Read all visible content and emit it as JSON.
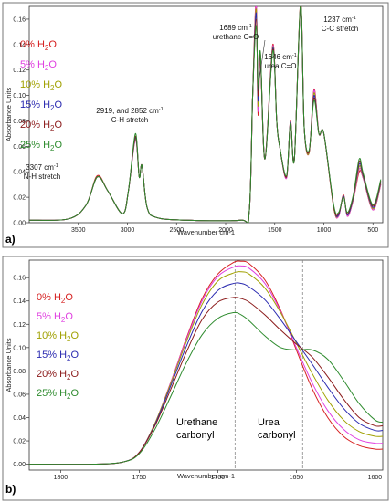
{
  "chart_data": [
    {
      "type": "line",
      "panel_label": "a)",
      "xlabel": "Wavenumber cm-1",
      "ylabel": "Absorbance Units",
      "xlim": [
        4000,
        400
      ],
      "ylim": [
        0,
        0.17
      ],
      "xticks": [
        "3500",
        "3000",
        "2500",
        "2000",
        "1500",
        "1000",
        "500"
      ],
      "yticks": [
        "0.00",
        "0.02",
        "0.04",
        "0.06",
        "0.08",
        "0.10",
        "0.12",
        "0.14",
        "0.16"
      ],
      "legend_position": "top-left",
      "legend": [
        {
          "name": "0% H",
          "sub": "2",
          "tail": "O",
          "color": "#d62020"
        },
        {
          "name": "5% H",
          "sub": "2",
          "tail": "O",
          "color": "#e040e0"
        },
        {
          "name": "10% H",
          "sub": "2",
          "tail": "O",
          "color": "#a0a000"
        },
        {
          "name": "15% H",
          "sub": "2",
          "tail": "O",
          "color": "#2a2ab0"
        },
        {
          "name": "20% H",
          "sub": "2",
          "tail": "O",
          "color": "#8b1a1a"
        },
        {
          "name": "25% H",
          "sub": "2",
          "tail": "O",
          "color": "#2e8b2e"
        }
      ],
      "annotations": [
        {
          "lines": [
            "3307 cm",
            "N-H stretch"
          ],
          "sup": "-1"
        },
        {
          "lines": [
            "2919, and 2852 cm",
            "C-H stretch"
          ],
          "sup": "-1"
        },
        {
          "lines": [
            "1689 cm",
            "urethane C=O"
          ],
          "sup": "-1"
        },
        {
          "lines": [
            "1646 cm",
            "urea C=O"
          ],
          "sup": "-1"
        },
        {
          "lines": [
            "1237 cm",
            "C-C stretch"
          ],
          "sup": "-1"
        }
      ],
      "peaks_series": [
        {
          "name": "0% H2O",
          "color": "#d62020",
          "x": [
            4000,
            3600,
            3420,
            3307,
            3200,
            3050,
            2990,
            2919,
            2880,
            2852,
            2800,
            2700,
            2400,
            1850,
            1760,
            1725,
            1689,
            1670,
            1646,
            1600,
            1520,
            1480,
            1450,
            1380,
            1340,
            1300,
            1237,
            1200,
            1150,
            1100,
            1050,
            1000,
            900,
            850,
            800,
            760,
            700,
            640,
            600,
            500,
            420
          ],
          "y": [
            0.002,
            0.003,
            0.014,
            0.037,
            0.025,
            0.007,
            0.025,
            0.066,
            0.036,
            0.045,
            0.012,
            0.004,
            0.002,
            0.002,
            0.008,
            0.1,
            0.174,
            0.085,
            0.128,
            0.05,
            0.14,
            0.08,
            0.06,
            0.035,
            0.08,
            0.05,
            0.173,
            0.075,
            0.055,
            0.105,
            0.07,
            0.07,
            0.012,
            0.005,
            0.022,
            0.005,
            0.018,
            0.04,
            0.035,
            0.01,
            0.03
          ]
        },
        {
          "name": "5% H2O",
          "color": "#e040e0",
          "x": [
            4000,
            3600,
            3420,
            3307,
            3200,
            3050,
            2990,
            2919,
            2880,
            2852,
            2800,
            2700,
            2400,
            1850,
            1760,
            1725,
            1689,
            1670,
            1646,
            1600,
            1520,
            1480,
            1450,
            1380,
            1340,
            1300,
            1237,
            1200,
            1150,
            1100,
            1050,
            1000,
            900,
            850,
            800,
            760,
            700,
            640,
            600,
            500,
            420
          ],
          "y": [
            0.002,
            0.003,
            0.014,
            0.036,
            0.025,
            0.007,
            0.025,
            0.065,
            0.036,
            0.045,
            0.012,
            0.004,
            0.002,
            0.002,
            0.008,
            0.1,
            0.171,
            0.088,
            0.129,
            0.05,
            0.139,
            0.08,
            0.06,
            0.035,
            0.079,
            0.05,
            0.17,
            0.075,
            0.055,
            0.104,
            0.07,
            0.07,
            0.012,
            0.005,
            0.021,
            0.005,
            0.018,
            0.042,
            0.035,
            0.01,
            0.03
          ]
        },
        {
          "name": "10% H2O",
          "color": "#a0a000",
          "x": [
            4000,
            3600,
            3420,
            3307,
            3200,
            3050,
            2990,
            2919,
            2880,
            2852,
            2800,
            2700,
            2400,
            1850,
            1760,
            1725,
            1689,
            1670,
            1646,
            1600,
            1520,
            1480,
            1450,
            1380,
            1340,
            1300,
            1237,
            1200,
            1150,
            1100,
            1050,
            1000,
            900,
            850,
            800,
            760,
            700,
            640,
            600,
            500,
            420
          ],
          "y": [
            0.002,
            0.003,
            0.014,
            0.036,
            0.025,
            0.007,
            0.025,
            0.066,
            0.036,
            0.045,
            0.012,
            0.004,
            0.002,
            0.002,
            0.008,
            0.1,
            0.168,
            0.092,
            0.131,
            0.05,
            0.138,
            0.08,
            0.06,
            0.036,
            0.079,
            0.05,
            0.17,
            0.075,
            0.055,
            0.102,
            0.07,
            0.07,
            0.012,
            0.006,
            0.021,
            0.006,
            0.019,
            0.044,
            0.036,
            0.011,
            0.031
          ]
        },
        {
          "name": "15% H2O",
          "color": "#2a2ab0",
          "x": [
            4000,
            3600,
            3420,
            3307,
            3200,
            3050,
            2990,
            2919,
            2880,
            2852,
            2800,
            2700,
            2400,
            1850,
            1760,
            1725,
            1689,
            1670,
            1646,
            1600,
            1520,
            1480,
            1450,
            1380,
            1340,
            1300,
            1237,
            1200,
            1150,
            1100,
            1050,
            1000,
            900,
            850,
            800,
            760,
            700,
            640,
            600,
            500,
            420
          ],
          "y": [
            0.002,
            0.003,
            0.014,
            0.036,
            0.025,
            0.007,
            0.025,
            0.067,
            0.036,
            0.045,
            0.012,
            0.004,
            0.002,
            0.002,
            0.008,
            0.1,
            0.165,
            0.096,
            0.132,
            0.05,
            0.137,
            0.08,
            0.06,
            0.036,
            0.079,
            0.05,
            0.17,
            0.075,
            0.056,
            0.1,
            0.07,
            0.07,
            0.013,
            0.006,
            0.021,
            0.006,
            0.02,
            0.046,
            0.037,
            0.012,
            0.032
          ]
        },
        {
          "name": "20% H2O",
          "color": "#8b1a1a",
          "x": [
            4000,
            3600,
            3420,
            3307,
            3200,
            3050,
            2990,
            2919,
            2880,
            2852,
            2800,
            2700,
            2400,
            1850,
            1760,
            1725,
            1689,
            1670,
            1646,
            1600,
            1520,
            1480,
            1450,
            1380,
            1340,
            1300,
            1237,
            1200,
            1150,
            1100,
            1050,
            1000,
            900,
            850,
            800,
            760,
            700,
            640,
            600,
            500,
            420
          ],
          "y": [
            0.002,
            0.003,
            0.014,
            0.036,
            0.025,
            0.007,
            0.025,
            0.068,
            0.036,
            0.045,
            0.012,
            0.004,
            0.002,
            0.002,
            0.008,
            0.1,
            0.16,
            0.1,
            0.133,
            0.05,
            0.136,
            0.08,
            0.06,
            0.036,
            0.078,
            0.05,
            0.171,
            0.075,
            0.056,
            0.098,
            0.07,
            0.07,
            0.013,
            0.007,
            0.02,
            0.007,
            0.021,
            0.048,
            0.038,
            0.013,
            0.033
          ]
        },
        {
          "name": "25% H2O",
          "color": "#2e8b2e",
          "x": [
            4000,
            3600,
            3420,
            3307,
            3200,
            3050,
            2990,
            2919,
            2880,
            2852,
            2800,
            2700,
            2400,
            1850,
            1760,
            1725,
            1689,
            1670,
            1646,
            1600,
            1520,
            1480,
            1450,
            1380,
            1340,
            1300,
            1237,
            1200,
            1150,
            1100,
            1050,
            1000,
            900,
            850,
            800,
            760,
            700,
            640,
            600,
            500,
            420
          ],
          "y": [
            0.002,
            0.003,
            0.014,
            0.036,
            0.025,
            0.007,
            0.025,
            0.07,
            0.036,
            0.045,
            0.012,
            0.004,
            0.002,
            0.002,
            0.008,
            0.1,
            0.155,
            0.105,
            0.134,
            0.05,
            0.135,
            0.08,
            0.06,
            0.037,
            0.078,
            0.05,
            0.172,
            0.075,
            0.057,
            0.096,
            0.07,
            0.07,
            0.014,
            0.008,
            0.02,
            0.008,
            0.022,
            0.05,
            0.039,
            0.014,
            0.034
          ]
        }
      ]
    },
    {
      "type": "line",
      "panel_label": "b)",
      "xlabel": "Wavenumber cm-1",
      "ylabel": "Absorbance Units",
      "xlim": [
        1820,
        1595
      ],
      "ylim": [
        -0.005,
        0.175
      ],
      "xticks": [
        "1800",
        "1750",
        "1700",
        "1650",
        "1600"
      ],
      "yticks": [
        "0.00",
        "0.02",
        "0.04",
        "0.06",
        "0.08",
        "0.10",
        "0.12",
        "0.14",
        "0.16"
      ],
      "vlines": [
        1689,
        1646
      ],
      "region_labels": [
        {
          "lines": [
            "Urethane",
            "carbonyl"
          ]
        },
        {
          "lines": [
            "Urea",
            "carbonyl"
          ]
        }
      ],
      "legend_position": "top-left",
      "series": [
        {
          "name": "0% H2O",
          "color": "#d62020",
          "x": [
            1820,
            1780,
            1760,
            1750,
            1740,
            1730,
            1720,
            1710,
            1700,
            1690,
            1685,
            1680,
            1670,
            1660,
            1650,
            1640,
            1630,
            1620,
            1610,
            1600,
            1595
          ],
          "y": [
            0,
            0,
            0.002,
            0.01,
            0.035,
            0.07,
            0.108,
            0.142,
            0.163,
            0.173,
            0.174,
            0.172,
            0.158,
            0.132,
            0.098,
            0.065,
            0.04,
            0.024,
            0.016,
            0.013,
            0.013
          ]
        },
        {
          "name": "5% H2O",
          "color": "#e040e0",
          "x": [
            1820,
            1780,
            1760,
            1750,
            1740,
            1730,
            1720,
            1710,
            1700,
            1690,
            1685,
            1680,
            1670,
            1660,
            1650,
            1640,
            1630,
            1620,
            1610,
            1600,
            1595
          ],
          "y": [
            0,
            0,
            0.002,
            0.01,
            0.035,
            0.07,
            0.107,
            0.14,
            0.161,
            0.169,
            0.17,
            0.168,
            0.155,
            0.131,
            0.1,
            0.07,
            0.046,
            0.03,
            0.021,
            0.018,
            0.018
          ]
        },
        {
          "name": "10% H2O",
          "color": "#a0a000",
          "x": [
            1820,
            1780,
            1760,
            1750,
            1740,
            1730,
            1720,
            1710,
            1700,
            1690,
            1685,
            1680,
            1670,
            1660,
            1650,
            1640,
            1630,
            1620,
            1610,
            1600,
            1595
          ],
          "y": [
            0,
            0,
            0.002,
            0.01,
            0.035,
            0.069,
            0.105,
            0.137,
            0.157,
            0.164,
            0.165,
            0.163,
            0.151,
            0.13,
            0.104,
            0.078,
            0.055,
            0.038,
            0.028,
            0.024,
            0.024
          ]
        },
        {
          "name": "15% H2O",
          "color": "#2a2ab0",
          "x": [
            1820,
            1780,
            1760,
            1750,
            1740,
            1730,
            1720,
            1710,
            1700,
            1690,
            1685,
            1680,
            1670,
            1660,
            1650,
            1640,
            1630,
            1620,
            1610,
            1600,
            1595
          ],
          "y": [
            0,
            0,
            0.002,
            0.01,
            0.034,
            0.067,
            0.101,
            0.131,
            0.149,
            0.155,
            0.155,
            0.152,
            0.141,
            0.124,
            0.105,
            0.086,
            0.066,
            0.048,
            0.035,
            0.029,
            0.029
          ]
        },
        {
          "name": "20% H2O",
          "color": "#8b1a1a",
          "x": [
            1820,
            1780,
            1760,
            1750,
            1740,
            1730,
            1720,
            1710,
            1700,
            1690,
            1685,
            1680,
            1670,
            1660,
            1650,
            1640,
            1630,
            1620,
            1610,
            1600,
            1595
          ],
          "y": [
            0,
            0,
            0.002,
            0.01,
            0.033,
            0.064,
            0.096,
            0.124,
            0.139,
            0.143,
            0.142,
            0.139,
            0.128,
            0.115,
            0.103,
            0.092,
            0.075,
            0.056,
            0.04,
            0.033,
            0.033
          ]
        },
        {
          "name": "25% H2O",
          "color": "#2e8b2e",
          "x": [
            1820,
            1780,
            1760,
            1750,
            1740,
            1730,
            1720,
            1710,
            1700,
            1690,
            1685,
            1680,
            1670,
            1660,
            1650,
            1640,
            1630,
            1620,
            1610,
            1600,
            1595
          ],
          "y": [
            0,
            0,
            0.002,
            0.009,
            0.03,
            0.058,
            0.087,
            0.111,
            0.125,
            0.13,
            0.128,
            0.123,
            0.11,
            0.1,
            0.098,
            0.098,
            0.09,
            0.072,
            0.052,
            0.038,
            0.036
          ]
        }
      ]
    }
  ]
}
